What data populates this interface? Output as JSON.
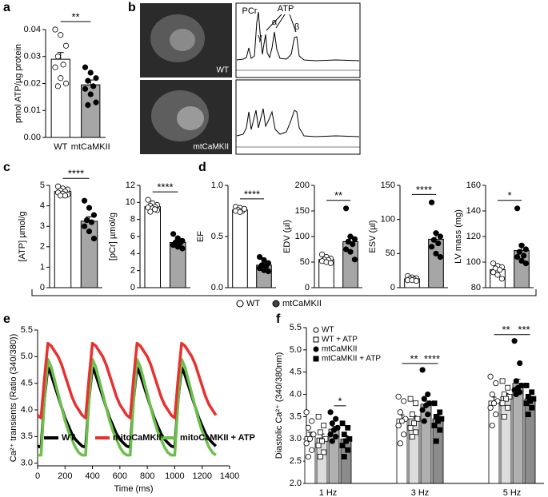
{
  "figure_legend": [
    "WT",
    "mtCaMKII"
  ],
  "chart_data": [
    {
      "type": "dotbar",
      "panel_label": "a",
      "ylabel": "pmol ATP/µg protein",
      "categories": [
        "WT",
        "mtCaMKII"
      ],
      "values": [
        0.029,
        0.0195
      ],
      "errors": [
        0.0025,
        0.0018
      ],
      "points": [
        [
          0.04,
          0.038,
          0.034,
          0.03,
          0.027,
          0.026,
          0.022,
          0.02,
          0.019
        ],
        [
          0.026,
          0.024,
          0.022,
          0.021,
          0.019,
          0.018,
          0.016,
          0.013,
          0.012
        ]
      ],
      "colors": [
        "#ffffff",
        "#a6a6a6"
      ],
      "marker_fills": [
        "#ffffff",
        "#000000"
      ],
      "ylim": [
        0,
        0.04
      ],
      "yticks": [
        {
          "value": 0,
          "label": "0.00"
        },
        {
          "value": 0.01,
          "label": "0.01"
        },
        {
          "value": 0.02,
          "label": "0.02"
        },
        {
          "value": 0.03,
          "label": "0.03"
        },
        {
          "value": 0.04,
          "label": "0.04"
        }
      ],
      "significance": "**"
    },
    {
      "type": "nmr",
      "panel_label": "b",
      "peak_labels": [
        "PCr",
        "ATP",
        "γ",
        "α",
        "β"
      ],
      "image_labels": [
        "WT",
        "mtCaMKII"
      ]
    },
    {
      "type": "dotbar",
      "panel_label": "c",
      "ylabel": "[ATP] µmol/g",
      "values": [
        4.7,
        3.25
      ],
      "errors": [
        0.08,
        0.22
      ],
      "points": [
        [
          4.95,
          4.85,
          4.8,
          4.75,
          4.7,
          4.65,
          4.6,
          4.55,
          4.5,
          4.5
        ],
        [
          4.25,
          3.9,
          3.55,
          3.3,
          3.2,
          3.0,
          2.75,
          2.4
        ]
      ],
      "colors": [
        "#ffffff",
        "#a6a6a6"
      ],
      "marker_fills": [
        "#ffffff",
        "#000000"
      ],
      "ylim": [
        0,
        5
      ],
      "yticks": [
        0,
        1,
        2,
        3,
        4,
        5
      ],
      "significance": "****"
    },
    {
      "type": "dotbar",
      "ylabel": "[pCr] µmol/g",
      "values": [
        9.5,
        5.3
      ],
      "errors": [
        0.15,
        0.3
      ],
      "points": [
        [
          10.3,
          9.9,
          9.7,
          9.6,
          9.5,
          9.4,
          9.3,
          9.1,
          8.9,
          9.2
        ],
        [
          6.3,
          5.8,
          5.5,
          5.3,
          5.2,
          5.0,
          4.8,
          4.6
        ]
      ],
      "colors": [
        "#ffffff",
        "#a6a6a6"
      ],
      "marker_fills": [
        "#ffffff",
        "#000000"
      ],
      "ylim": [
        0,
        12
      ],
      "yticks": [
        0,
        2,
        4,
        6,
        8,
        10,
        12
      ],
      "significance": "****"
    },
    {
      "type": "dotbar",
      "panel_label": "d",
      "ylabel": "EF",
      "values": [
        0.76,
        0.22
      ],
      "errors": [
        0.01,
        0.02
      ],
      "points": [
        [
          0.79,
          0.78,
          0.77,
          0.76,
          0.75,
          0.75,
          0.74,
          0.77
        ],
        [
          0.3,
          0.27,
          0.24,
          0.22,
          0.21,
          0.19,
          0.17,
          0.16
        ]
      ],
      "colors": [
        "#ffffff",
        "#a6a6a6"
      ],
      "marker_fills": [
        "#ffffff",
        "#000000"
      ],
      "ylim": [
        0,
        1
      ],
      "yticks": [
        {
          "value": 0,
          "label": "0.0"
        },
        {
          "value": 0.5,
          "label": "0.5"
        },
        {
          "value": 1,
          "label": "1.0"
        }
      ],
      "significance": "****"
    },
    {
      "type": "dotbar",
      "ylabel": "EDV (µl)",
      "values": [
        55,
        90
      ],
      "errors": [
        3,
        10
      ],
      "points": [
        [
          65,
          60,
          57,
          55,
          54,
          52,
          50,
          48
        ],
        [
          155,
          100,
          95,
          90,
          85,
          75,
          70,
          55
        ]
      ],
      "colors": [
        "#ffffff",
        "#a6a6a6"
      ],
      "marker_fills": [
        "#ffffff",
        "#000000"
      ],
      "ylim": [
        0,
        200
      ],
      "yticks": [
        0,
        50,
        100,
        150,
        200
      ],
      "significance": "**"
    },
    {
      "type": "dotbar",
      "ylabel": "ESV (µl)",
      "values": [
        13,
        71
      ],
      "errors": [
        1.5,
        9
      ],
      "points": [
        [
          17,
          15,
          14,
          13,
          12,
          11,
          11,
          10
        ],
        [
          125,
          80,
          75,
          70,
          65,
          60,
          50,
          45
        ]
      ],
      "colors": [
        "#ffffff",
        "#a6a6a6"
      ],
      "marker_fills": [
        "#ffffff",
        "#000000"
      ],
      "ylim": [
        0,
        150
      ],
      "yticks": [
        0,
        50,
        100,
        150
      ],
      "significance": "****"
    },
    {
      "type": "dotbar",
      "ylabel": "LV mass (mg)",
      "values": [
        94,
        109
      ],
      "errors": [
        2.5,
        4.5
      ],
      "points": [
        [
          99,
          97,
          96,
          95,
          94,
          92,
          90,
          87
        ],
        [
          142,
          113,
          110,
          108,
          105,
          104,
          101,
          99
        ]
      ],
      "colors": [
        "#ffffff",
        "#a6a6a6"
      ],
      "marker_fills": [
        "#ffffff",
        "#000000"
      ],
      "ylim": [
        80,
        160
      ],
      "yticks": [
        80,
        100,
        120,
        140,
        160
      ],
      "significance": "*"
    },
    {
      "type": "line",
      "panel_label": "e",
      "ylabel": "Ca²⁺ transients (Ratio (340/380))",
      "xlabel": "Time (ms)",
      "x": [
        0,
        25,
        50,
        75,
        100,
        125,
        150,
        175,
        200,
        225,
        250,
        275,
        300,
        325,
        350,
        375,
        400,
        425,
        450,
        475,
        500,
        525,
        550,
        575,
        600,
        625,
        650,
        675,
        700,
        725,
        750,
        775,
        800,
        825,
        850,
        875,
        900,
        925,
        950,
        975,
        1000,
        1025,
        1050,
        1075,
        1100,
        1125,
        1150,
        1175,
        1200,
        1225,
        1250,
        1275,
        1300
      ],
      "series": [
        {
          "name": "WT",
          "color": "#000000",
          "values": [
            3.32,
            3.3,
            4.2,
            4.8,
            4.65,
            4.45,
            4.25,
            4.05,
            3.85,
            3.7,
            3.55,
            3.45,
            3.38,
            3.32,
            3.3,
            4.2,
            4.8,
            4.65,
            4.45,
            4.25,
            4.05,
            3.85,
            3.7,
            3.55,
            3.45,
            3.38,
            3.32,
            3.3,
            4.2,
            4.8,
            4.65,
            4.45,
            4.25,
            4.05,
            3.85,
            3.7,
            3.55,
            3.45,
            3.38,
            3.32,
            3.3,
            4.2,
            4.8,
            4.65,
            4.45,
            4.25,
            4.05,
            3.85,
            3.7,
            3.55,
            3.45,
            3.38,
            3.32
          ]
        },
        {
          "name": "mitoCaMKII",
          "color": "#e8312f",
          "values": [
            3.9,
            3.85,
            4.6,
            5.25,
            5.2,
            5.1,
            5.0,
            4.85,
            4.65,
            4.45,
            4.25,
            4.1,
            4.0,
            3.9,
            3.85,
            4.6,
            5.25,
            5.2,
            5.1,
            5.0,
            4.85,
            4.65,
            4.45,
            4.25,
            4.1,
            4.0,
            3.9,
            3.85,
            4.6,
            5.25,
            5.2,
            5.1,
            5.0,
            4.85,
            4.65,
            4.45,
            4.25,
            4.1,
            4.0,
            3.9,
            3.85,
            4.6,
            5.25,
            5.2,
            5.1,
            5.0,
            4.85,
            4.65,
            4.45,
            4.25,
            4.1,
            4.0,
            3.9
          ]
        },
        {
          "name": "mitoCaMKII + ATP",
          "color": "#6cbf4b",
          "values": [
            3.15,
            3.15,
            4.2,
            4.95,
            4.8,
            4.55,
            4.3,
            4.05,
            3.8,
            3.6,
            3.45,
            3.3,
            3.2,
            3.15,
            3.15,
            4.2,
            4.95,
            4.8,
            4.55,
            4.3,
            4.05,
            3.8,
            3.6,
            3.45,
            3.3,
            3.2,
            3.15,
            3.15,
            4.2,
            4.95,
            4.8,
            4.55,
            4.3,
            4.05,
            3.8,
            3.6,
            3.45,
            3.3,
            3.2,
            3.15,
            3.15,
            4.2,
            4.95,
            4.8,
            4.55,
            4.3,
            4.05,
            3.8,
            3.6,
            3.45,
            3.3,
            3.2,
            3.15
          ]
        }
      ],
      "xlim": [
        0,
        1400
      ],
      "xticks": [
        0,
        200,
        400,
        600,
        800,
        1000,
        1200,
        1400
      ],
      "ylim": [
        2.95,
        5.5
      ],
      "yticks": [
        {
          "value": 3,
          "label": "3.0"
        },
        3.5,
        {
          "value": 4,
          "label": "4.0"
        },
        4.5,
        {
          "value": 5,
          "label": "5.0"
        },
        5.5
      ],
      "legend": "lower left"
    },
    {
      "type": "grouped_bar",
      "panel_label": "f",
      "ylabel": "Diastolic Ca²⁺ (340/380nm)",
      "categories": [
        "1 Hz",
        "3 Hz",
        "5 Hz"
      ],
      "series": [
        {
          "name": "WT",
          "color": "#ffffff",
          "marker": "circle",
          "marker_fill": "#ffffff",
          "values": [
            3.05,
            3.45,
            3.85
          ],
          "errors": [
            0.1,
            0.09,
            0.09
          ],
          "points": [
            [
              3.6,
              3.4,
              3.25,
              3.1,
              3.0,
              2.9,
              2.75,
              2.6
            ],
            [
              3.95,
              3.85,
              3.6,
              3.45,
              3.4,
              3.3,
              3.1,
              2.9
            ],
            [
              4.4,
              4.25,
              4.0,
              3.85,
              3.8,
              3.7,
              3.55,
              3.3
            ]
          ]
        },
        {
          "name": "WT + ATP",
          "color": "#dcdcdc",
          "marker": "square",
          "marker_fill": "#ffffff",
          "values": [
            3.02,
            3.45,
            3.95
          ],
          "errors": [
            0.09,
            0.07,
            0.07
          ],
          "points": [
            [
              3.5,
              3.3,
              3.15,
              3.0,
              2.95,
              2.85,
              2.7,
              2.6
            ],
            [
              3.9,
              3.8,
              3.55,
              3.45,
              3.35,
              3.25,
              3.15,
              3.05
            ],
            [
              4.3,
              4.15,
              4.0,
              3.95,
              3.9,
              3.8,
              3.7,
              3.5
            ]
          ]
        },
        {
          "name": "mtCaMKII",
          "color": "#b0b0b0",
          "marker": "circle",
          "marker_fill": "#000000",
          "values": [
            3.22,
            3.78,
            4.25
          ],
          "errors": [
            0.06,
            0.07,
            0.09
          ],
          "points": [
            [
              3.6,
              3.45,
              3.35,
              3.25,
              3.2,
              3.1,
              3.05,
              2.95
            ],
            [
              4.55,
              4.0,
              3.9,
              3.8,
              3.75,
              3.65,
              3.55,
              3.4
            ],
            [
              5.2,
              4.7,
              4.3,
              4.2,
              4.15,
              4.1,
              4.05,
              4.0
            ]
          ]
        },
        {
          "name": "mtCaMKII + ATP",
          "color": "#8c8c8c",
          "marker": "square",
          "marker_fill": "#000000",
          "values": [
            3.0,
            3.45,
            3.9
          ],
          "errors": [
            0.07,
            0.08,
            0.05
          ],
          "points": [
            [
              3.35,
              3.25,
              3.1,
              3.0,
              2.95,
              2.85,
              2.75,
              2.6
            ],
            [
              3.8,
              3.6,
              3.5,
              3.45,
              3.4,
              3.3,
              3.2,
              2.95
            ],
            [
              4.2,
              4.05,
              3.95,
              3.9,
              3.85,
              3.8,
              3.7,
              3.55
            ]
          ]
        }
      ],
      "annotations": [
        [
          "*"
        ],
        [
          "**",
          "****"
        ],
        [
          "**",
          "***"
        ]
      ],
      "ylim": [
        2,
        5.5
      ],
      "yticks": [
        {
          "value": 2,
          "label": "2.0"
        },
        2.5,
        {
          "value": 3,
          "label": "3.0"
        },
        3.5,
        {
          "value": 4,
          "label": "4.0"
        },
        4.5,
        {
          "value": 5,
          "label": "5.0"
        },
        5.5
      ],
      "legend": "upper left"
    }
  ]
}
